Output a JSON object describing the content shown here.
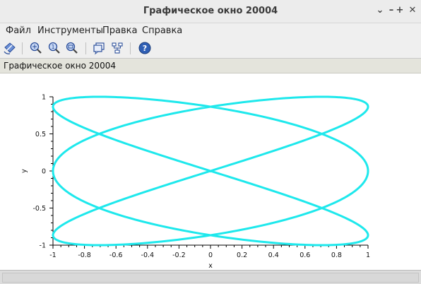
{
  "window": {
    "title": "Графическое окно 20004",
    "controls": [
      "⌄",
      "–",
      "+",
      "✕"
    ]
  },
  "menu": [
    "Файл",
    "Инструменты",
    "Правка",
    "Справка"
  ],
  "toolbar": {
    "buttons": [
      "rotate-icon",
      "zoom-area-icon",
      "zoom-reset-icon",
      "zoom-icon",
      "datatip-icon",
      "edit-axes-icon",
      "help-icon"
    ]
  },
  "infobar": {
    "text": "Графическое окно 20004"
  },
  "chart_data": {
    "type": "line",
    "title": "",
    "xlabel": "x",
    "ylabel": "y",
    "xlim": [
      -1,
      1
    ],
    "ylim": [
      -1,
      1
    ],
    "xticks": [
      "-1",
      "-0.8",
      "-0.6",
      "-0.4",
      "-0.2",
      "0",
      "0.2",
      "0.4",
      "0.6",
      "0.8",
      "1"
    ],
    "yticks": [
      "-1",
      "-0.5",
      "0",
      "0.5",
      "1"
    ],
    "grid": false,
    "series": [
      {
        "color": "#1ee8ec",
        "curve": "Lissajous x = sin(3t), y = sin(2t)",
        "a": 3,
        "b": 2
      }
    ]
  }
}
